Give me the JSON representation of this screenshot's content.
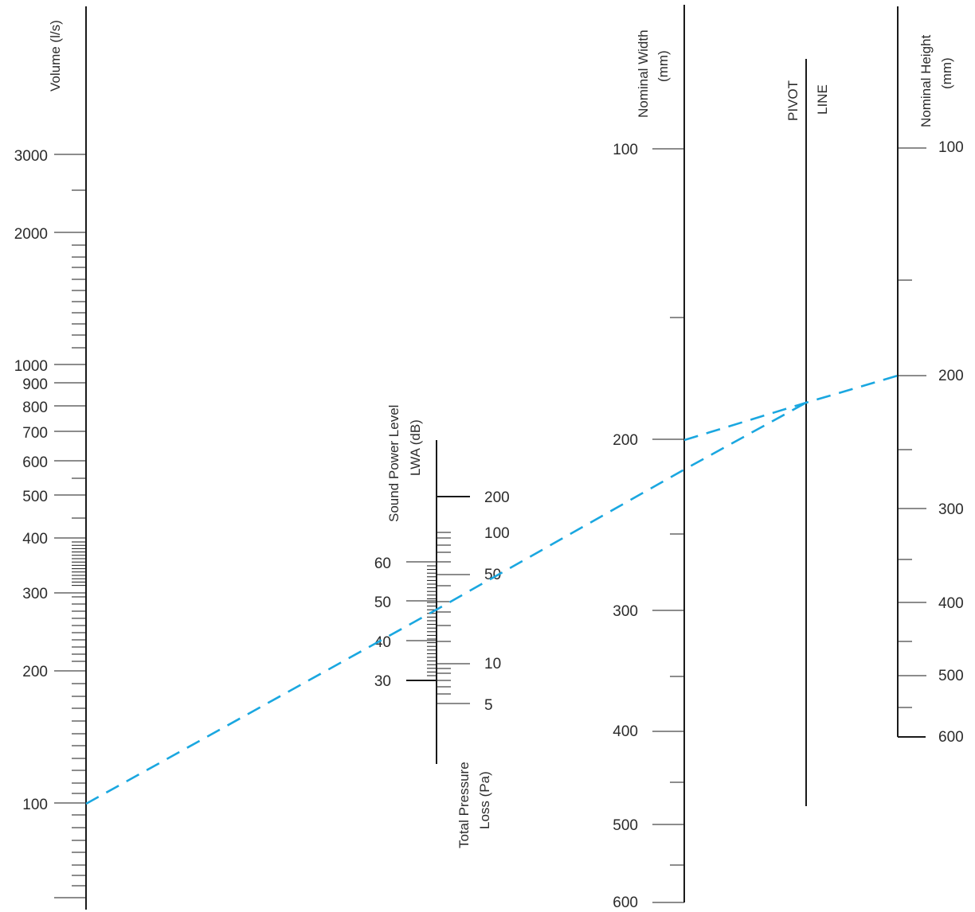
{
  "colors": {
    "axis": "#1a1a1a",
    "text": "#2b2b2b",
    "route": "#1aa7e0"
  },
  "scales": {
    "volume": {
      "title": [
        "Volume (l/s)"
      ],
      "labels": [
        "3000",
        "2000",
        "1000",
        "900",
        "800",
        "700",
        "600",
        "500",
        "400",
        "300",
        "200",
        "100"
      ]
    },
    "sound_power": {
      "title": [
        "Sound Power Level",
        "LWA (dB)"
      ],
      "labels": [
        "60",
        "50",
        "40",
        "30"
      ]
    },
    "pressure_loss": {
      "title": [
        "Total Pressure",
        "Loss (Pa)"
      ],
      "labels": [
        "200",
        "100",
        "50",
        "10",
        "5"
      ]
    },
    "nominal_width": {
      "title": [
        "Nominal Width",
        "(mm)"
      ],
      "labels": [
        "100",
        "200",
        "300",
        "400",
        "500",
        "600"
      ]
    },
    "pivot_line": {
      "title": [
        "PIVOT",
        "LINE"
      ]
    },
    "nominal_height": {
      "title": [
        "Nominal Height",
        "(mm)"
      ],
      "labels": [
        "100",
        "200",
        "300",
        "400",
        "500",
        "600"
      ]
    }
  },
  "example": {
    "volume": 100,
    "nominal_width": 200,
    "nominal_height": 200
  }
}
